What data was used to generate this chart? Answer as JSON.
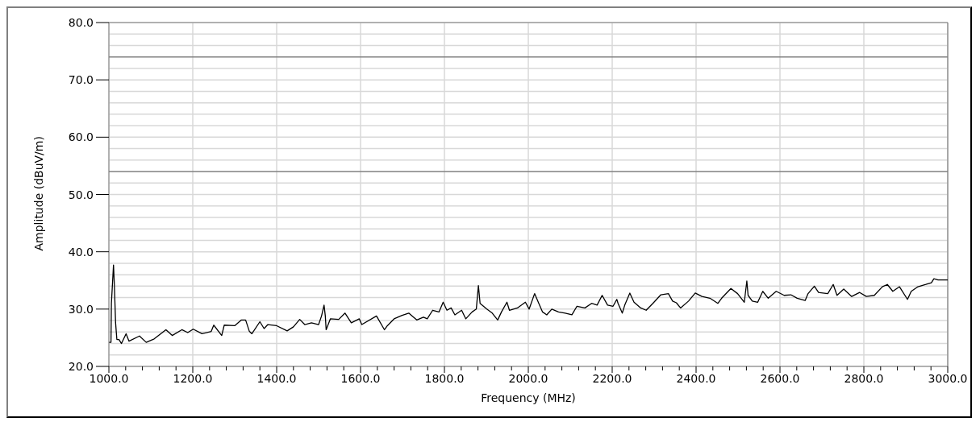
{
  "chart_data": {
    "type": "line",
    "xlabel": "Frequency (MHz)",
    "ylabel": "Amplitude (dBuV/m)",
    "xlim": [
      1000,
      3000
    ],
    "xticks": [
      {
        "value": 1000,
        "label": "1000.0"
      },
      {
        "value": 1040,
        "label": null
      },
      {
        "value": 1080,
        "label": null
      },
      {
        "value": 1120,
        "label": null
      },
      {
        "value": 1160,
        "label": null
      },
      {
        "value": 1200,
        "label": "1200.0"
      },
      {
        "value": 1240,
        "label": null
      },
      {
        "value": 1280,
        "label": null
      },
      {
        "value": 1320,
        "label": null
      },
      {
        "value": 1360,
        "label": null
      },
      {
        "value": 1400,
        "label": "1400.0"
      },
      {
        "value": 1440,
        "label": null
      },
      {
        "value": 1480,
        "label": null
      },
      {
        "value": 1520,
        "label": null
      },
      {
        "value": 1560,
        "label": null
      },
      {
        "value": 1600,
        "label": "1600.0"
      },
      {
        "value": 1640,
        "label": null
      },
      {
        "value": 1680,
        "label": null
      },
      {
        "value": 1720,
        "label": null
      },
      {
        "value": 1760,
        "label": null
      },
      {
        "value": 1800,
        "label": "1800.0"
      },
      {
        "value": 1840,
        "label": null
      },
      {
        "value": 1880,
        "label": null
      },
      {
        "value": 1920,
        "label": null
      },
      {
        "value": 1960,
        "label": null
      },
      {
        "value": 2000,
        "label": "2000.0"
      },
      {
        "value": 2040,
        "label": null
      },
      {
        "value": 2080,
        "label": null
      },
      {
        "value": 2120,
        "label": null
      },
      {
        "value": 2160,
        "label": null
      },
      {
        "value": 2200,
        "label": "2200.0"
      },
      {
        "value": 2240,
        "label": null
      },
      {
        "value": 2280,
        "label": null
      },
      {
        "value": 2320,
        "label": null
      },
      {
        "value": 2360,
        "label": null
      },
      {
        "value": 2400,
        "label": "2400.0"
      },
      {
        "value": 2440,
        "label": null
      },
      {
        "value": 2480,
        "label": null
      },
      {
        "value": 2520,
        "label": null
      },
      {
        "value": 2560,
        "label": null
      },
      {
        "value": 2600,
        "label": "2600.0"
      },
      {
        "value": 2640,
        "label": null
      },
      {
        "value": 2680,
        "label": null
      },
      {
        "value": 2720,
        "label": null
      },
      {
        "value": 2760,
        "label": null
      },
      {
        "value": 2800,
        "label": "2800.0"
      },
      {
        "value": 2840,
        "label": null
      },
      {
        "value": 2880,
        "label": null
      },
      {
        "value": 2920,
        "label": null
      },
      {
        "value": 2960,
        "label": null
      },
      {
        "value": 3000,
        "label": "3000.0"
      }
    ],
    "ylim": [
      20,
      80
    ],
    "yticks": [
      {
        "value": 20,
        "label": "20.0"
      },
      {
        "value": 22,
        "label": null
      },
      {
        "value": 24,
        "label": null
      },
      {
        "value": 26,
        "label": null
      },
      {
        "value": 28,
        "label": null
      },
      {
        "value": 30,
        "label": "30.0"
      },
      {
        "value": 32,
        "label": null
      },
      {
        "value": 34,
        "label": null
      },
      {
        "value": 36,
        "label": null
      },
      {
        "value": 38,
        "label": null
      },
      {
        "value": 40,
        "label": "40.0"
      },
      {
        "value": 42,
        "label": null
      },
      {
        "value": 44,
        "label": null
      },
      {
        "value": 46,
        "label": null
      },
      {
        "value": 48,
        "label": null
      },
      {
        "value": 50,
        "label": "50.0"
      },
      {
        "value": 52,
        "label": null
      },
      {
        "value": 56,
        "label": null
      },
      {
        "value": 58,
        "label": null
      },
      {
        "value": 60,
        "label": "60.0"
      },
      {
        "value": 62,
        "label": null
      },
      {
        "value": 64,
        "label": null
      },
      {
        "value": 66,
        "label": null
      },
      {
        "value": 68,
        "label": null
      },
      {
        "value": 70,
        "label": "70.0"
      },
      {
        "value": 72,
        "label": null
      },
      {
        "value": 76,
        "label": null
      },
      {
        "value": 78,
        "label": null
      },
      {
        "value": 80,
        "label": "80.0"
      }
    ],
    "grid": true,
    "marker": "none",
    "line_style": "solid",
    "ref_lines": [
      {
        "axis": "y",
        "value": 74,
        "color": "#808080"
      },
      {
        "axis": "y",
        "value": 54,
        "color": "#808080"
      }
    ],
    "series": [
      {
        "color": "#000000",
        "x": [
          1000,
          1005,
          1006,
          1011,
          1013,
          1016,
          1019,
          1024,
          1030,
          1041,
          1048,
          1073,
          1089,
          1108,
          1136,
          1151,
          1174,
          1188,
          1201,
          1222,
          1244,
          1250,
          1269,
          1275,
          1300,
          1316,
          1326,
          1335,
          1341,
          1360,
          1370,
          1379,
          1400,
          1425,
          1440,
          1455,
          1467,
          1483,
          1500,
          1507,
          1513,
          1516,
          1518,
          1528,
          1548,
          1563,
          1578,
          1597,
          1603,
          1638,
          1657,
          1664,
          1680,
          1699,
          1715,
          1734,
          1750,
          1759,
          1772,
          1787,
          1797,
          1806,
          1816,
          1825,
          1841,
          1851,
          1866,
          1876,
          1881,
          1885,
          1901,
          1914,
          1927,
          1936,
          1949,
          1955,
          1974,
          1993,
          2002,
          2015,
          2025,
          2034,
          2044,
          2056,
          2072,
          2088,
          2104,
          2116,
          2135,
          2151,
          2164,
          2176,
          2189,
          2202,
          2211,
          2214,
          2224,
          2230,
          2242,
          2252,
          2268,
          2281,
          2297,
          2316,
          2334,
          2344,
          2353,
          2363,
          2382,
          2398,
          2414,
          2433,
          2452,
          2461,
          2483,
          2499,
          2515,
          2521,
          2524,
          2534,
          2547,
          2559,
          2572,
          2591,
          2610,
          2626,
          2641,
          2660,
          2667,
          2682,
          2692,
          2714,
          2727,
          2736,
          2752,
          2771,
          2790,
          2806,
          2825,
          2844,
          2856,
          2869,
          2885,
          2904,
          2913,
          2929,
          2948,
          2961,
          2967,
          2977,
          3000
        ],
        "values": [
          24.2,
          24.2,
          31.0,
          37.7,
          34.3,
          27.6,
          24.7,
          24.7,
          24.0,
          25.7,
          24.4,
          25.3,
          24.2,
          24.8,
          26.4,
          25.4,
          26.4,
          25.9,
          26.5,
          25.7,
          26.1,
          27.2,
          25.4,
          27.2,
          27.1,
          28.1,
          28.1,
          26.1,
          25.7,
          27.8,
          26.6,
          27.3,
          27.1,
          26.2,
          26.9,
          28.2,
          27.3,
          27.6,
          27.3,
          28.8,
          30.7,
          28.8,
          26.4,
          28.3,
          28.2,
          29.3,
          27.6,
          28.3,
          27.3,
          28.8,
          26.4,
          27.1,
          28.3,
          28.9,
          29.3,
          28.1,
          28.6,
          28.3,
          29.8,
          29.5,
          31.2,
          29.8,
          30.2,
          29.0,
          29.8,
          28.3,
          29.5,
          30.0,
          34.1,
          31.0,
          30.0,
          29.3,
          28.1,
          29.5,
          31.2,
          29.8,
          30.2,
          31.2,
          30.0,
          32.7,
          31.0,
          29.5,
          29.0,
          30.0,
          29.5,
          29.3,
          29.0,
          30.5,
          30.2,
          31.0,
          30.7,
          32.4,
          30.7,
          30.5,
          31.7,
          31.0,
          29.3,
          30.7,
          32.8,
          31.2,
          30.2,
          29.8,
          31.0,
          32.5,
          32.7,
          31.4,
          31.1,
          30.2,
          31.4,
          32.8,
          32.2,
          31.9,
          31.0,
          31.9,
          33.6,
          32.7,
          31.2,
          34.9,
          32.4,
          31.4,
          31.2,
          33.1,
          31.9,
          33.1,
          32.4,
          32.5,
          31.9,
          31.5,
          32.7,
          34.0,
          32.9,
          32.7,
          34.3,
          32.4,
          33.5,
          32.2,
          32.9,
          32.2,
          32.4,
          33.9,
          34.3,
          33.1,
          33.9,
          31.7,
          33.1,
          33.9,
          34.3,
          34.6,
          35.3,
          35.1,
          35.1
        ]
      }
    ]
  }
}
